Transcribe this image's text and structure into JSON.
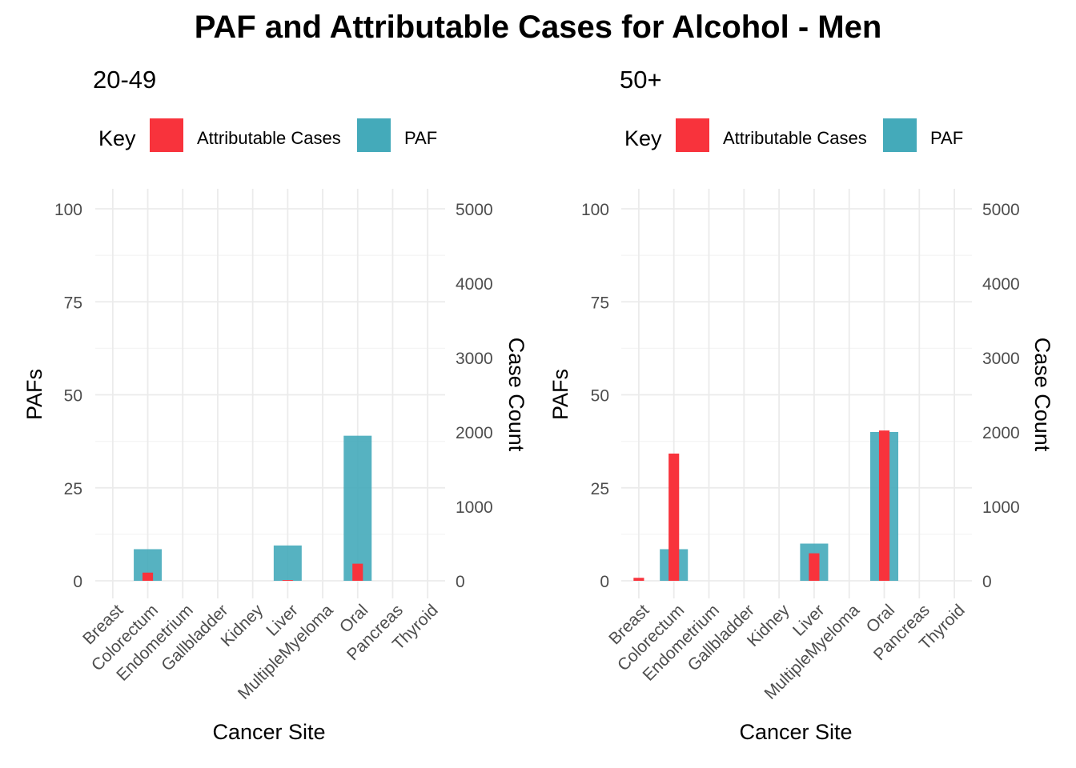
{
  "title": "PAF and Attributable Cases for Alcohol - Men",
  "legend": {
    "title": "Key",
    "entries": [
      {
        "label": "Attributable Cases",
        "color": "#F8333C"
      },
      {
        "label": "PAF",
        "color": "#44AABA"
      }
    ]
  },
  "chart_data": [
    {
      "type": "bar",
      "title": "20-49",
      "xlabel": "Cancer Site",
      "ylabel": "PAFs",
      "y2label": "Case Count",
      "categories": [
        "Breast",
        "Colorectum",
        "Endometrium",
        "Gallbladder",
        "Kidney",
        "Liver",
        "MultipleMyeloma",
        "Oral",
        "Pancreas",
        "Thyroid"
      ],
      "ylim": [
        0,
        100
      ],
      "y_ticks": [
        0,
        25,
        50,
        75,
        100
      ],
      "y2lim": [
        0,
        5000
      ],
      "y2_ticks": [
        0,
        1000,
        2000,
        3000,
        4000,
        5000
      ],
      "grid": true,
      "legend_position": "top",
      "series": [
        {
          "name": "PAF",
          "axis": "left",
          "values": [
            0,
            8.5,
            0,
            0,
            0,
            9.5,
            0,
            39,
            0,
            0
          ]
        },
        {
          "name": "Attributable Cases",
          "axis": "right",
          "values": [
            0,
            110,
            0,
            0,
            0,
            10,
            0,
            230,
            0,
            0
          ]
        }
      ]
    },
    {
      "type": "bar",
      "title": "50+",
      "xlabel": "Cancer Site",
      "ylabel": "PAFs",
      "y2label": "Case Count",
      "categories": [
        "Breast",
        "Colorectum",
        "Endometrium",
        "Gallbladder",
        "Kidney",
        "Liver",
        "MultipleMyeloma",
        "Oral",
        "Pancreas",
        "Thyroid"
      ],
      "ylim": [
        0,
        100
      ],
      "y_ticks": [
        0,
        25,
        50,
        75,
        100
      ],
      "y2lim": [
        0,
        5000
      ],
      "y2_ticks": [
        0,
        1000,
        2000,
        3000,
        4000,
        5000
      ],
      "grid": true,
      "legend_position": "top",
      "series": [
        {
          "name": "PAF",
          "axis": "left",
          "values": [
            0,
            8.5,
            0,
            0,
            0,
            10,
            0,
            40,
            0,
            0
          ]
        },
        {
          "name": "Attributable Cases",
          "axis": "right",
          "values": [
            40,
            1710,
            0,
            0,
            0,
            370,
            0,
            2020,
            0,
            0
          ]
        }
      ]
    }
  ]
}
